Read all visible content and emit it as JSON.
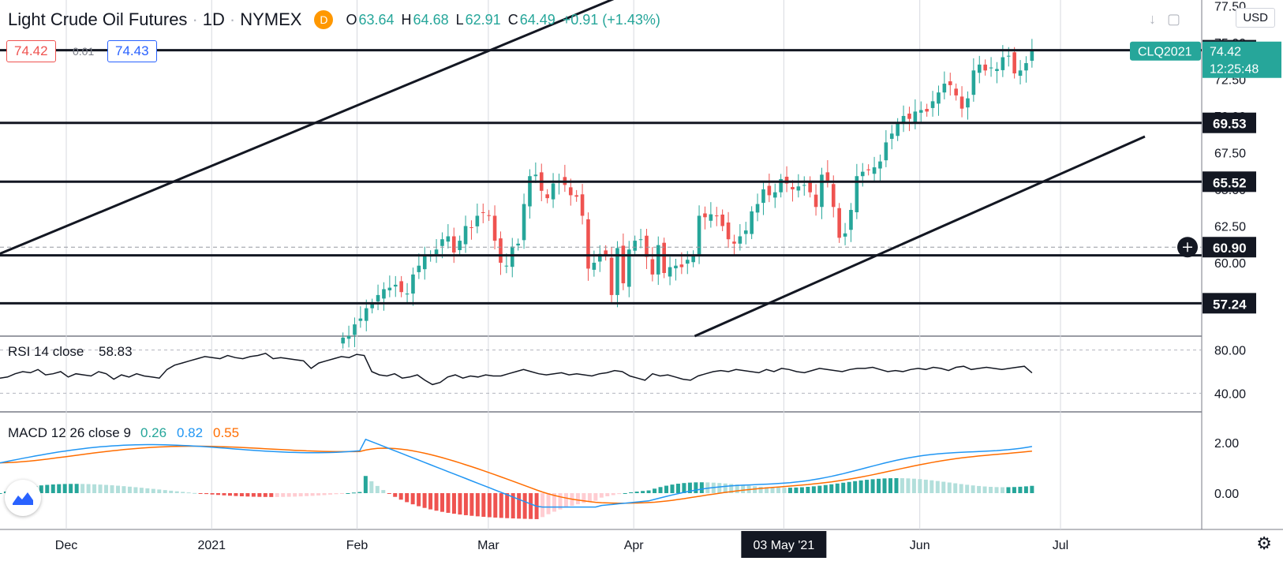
{
  "header": {
    "symbol_name": "Light Crude Oil Futures",
    "interval": "1D",
    "exchange": "NYMEX",
    "badge": "D",
    "ohlc": {
      "o_label": "O",
      "o": "63.64",
      "h_label": "H",
      "h": "64.68",
      "l_label": "L",
      "l": "62.91",
      "c_label": "C",
      "c": "64.49",
      "change": "+0.91 (+1.43%)"
    }
  },
  "trade": {
    "sell": "74.42",
    "spread": "0.01",
    "buy": "74.43"
  },
  "currency": "USD",
  "chart_data": {
    "type": "candlestick",
    "symbol": "CLQ2021",
    "colors": {
      "up": "#26a69a",
      "down": "#ef5350",
      "line": "#131722",
      "macd": "#2196f3",
      "signal": "#ff6d00",
      "hist_up": "#26a69a",
      "hist_up_weak": "#b2dfdb",
      "hist_down": "#ef5350",
      "hist_down_weak": "#ffcdd2"
    },
    "price_axis": {
      "ticks": [
        77.5,
        75.0,
        72.5,
        70.0,
        67.5,
        65.0,
        62.5,
        60.0
      ],
      "tick_labels": [
        "77.50",
        "75.00",
        "72.50",
        "70.00",
        "67.50",
        "65.00",
        "62.50",
        "60.00"
      ],
      "ylim": [
        55.0,
        77.9
      ]
    },
    "last_price": {
      "value": 74.42,
      "label": "74.42",
      "countdown": "12:25:48",
      "symbol_label": "CLQ2021"
    },
    "horizontal_levels": [
      {
        "value": 74.48,
        "label": "74.48"
      },
      {
        "value": 69.53,
        "label": "69.53"
      },
      {
        "value": 65.52,
        "label": "65.52"
      },
      {
        "value": 57.24,
        "label": "57.24"
      },
      {
        "value": 60.5,
        "label": ""
      }
    ],
    "crosshair": {
      "value": 60.9,
      "label": "60.90"
    },
    "time_axis": {
      "labels": [
        "Dec",
        "2021",
        "Feb",
        "Mar",
        "Apr",
        "03 May '21",
        "Jun",
        "Jul"
      ],
      "dates": [
        "2020-12-01",
        "2021-01-01",
        "2021-02-01",
        "2021-03-01",
        "2021-04-01",
        "2021-05-03",
        "2021-06-01",
        "2021-07-01"
      ],
      "highlight": "03 May '21"
    },
    "trendlines": [
      {
        "from": [
          "2020-11-16",
          60.5
        ],
        "to": [
          "2021-04-12",
          80.0
        ]
      },
      {
        "from": [
          "2021-04-14",
          55.0
        ],
        "to": [
          "2021-07-19",
          68.6
        ]
      }
    ],
    "candles_first_date": "2021-01-29",
    "candles_close": [
      54.9,
      55.0,
      55.8,
      56.2,
      56.9,
      57.2,
      57.8,
      58.2,
      58.3,
      58.5,
      58.0,
      57.9,
      59.2,
      59.8,
      60.5,
      60.5,
      60.9,
      61.6,
      61.8,
      60.7,
      61.5,
      62.5,
      62.4,
      63.2,
      63.4,
      63.2,
      61.5,
      60.0,
      59.8,
      61.1,
      61.3,
      64.0,
      65.9,
      66.0,
      64.9,
      64.4,
      65.4,
      65.6,
      65.3,
      64.6,
      64.5,
      63.2,
      59.6,
      60.0,
      60.6,
      60.5,
      57.8,
      61.0,
      58.6,
      60.9,
      61.5,
      61.6,
      60.4,
      59.2,
      61.2,
      59.3,
      59.7,
      59.8,
      59.7,
      60.2,
      60.5,
      63.2,
      63.1,
      63.3,
      63.2,
      62.5,
      61.6,
      61.3,
      61.8,
      62.2,
      63.5,
      64.0,
      65.0,
      64.6,
      64.8,
      65.7,
      65.4,
      65.0,
      65.2,
      65.3,
      64.8,
      63.8,
      66.0,
      65.6,
      63.8,
      61.7,
      62.0,
      63.6,
      65.9,
      66.2,
      66.3,
      66.5,
      66.9,
      68.2,
      68.8,
      69.5,
      70.0,
      69.8,
      70.3,
      70.4,
      70.3,
      71.0,
      71.6,
      72.2,
      72.1,
      71.4,
      70.5,
      71.2,
      73.1,
      73.5,
      73.1,
      73.3,
      73.2,
      74.0,
      74.1,
      72.9,
      73.1,
      73.6,
      74.42
    ],
    "rsi": {
      "label": "RSI 14 close",
      "value_label": "58.83",
      "ticks": [
        "80.00",
        "40.00"
      ],
      "tick_values": [
        80,
        40
      ],
      "values": [
        54,
        55,
        58,
        60,
        59,
        62,
        57,
        58,
        60,
        55,
        58,
        57,
        56,
        60,
        58,
        53,
        57,
        55,
        58,
        56,
        55,
        54,
        62,
        66,
        68,
        70,
        72,
        74,
        73,
        72,
        75,
        73,
        72,
        74,
        75,
        77,
        72,
        73,
        72,
        71,
        70,
        63,
        68,
        70,
        72,
        74,
        73,
        76,
        75,
        60,
        57,
        56,
        58,
        54,
        55,
        57,
        52,
        48,
        50,
        55,
        57,
        54,
        56,
        55,
        57,
        56,
        56,
        58,
        60,
        62,
        60,
        58,
        57,
        58,
        59,
        57,
        58,
        57,
        56,
        58,
        59,
        61,
        60,
        56,
        54,
        52,
        58,
        56,
        57,
        55,
        53,
        52,
        56,
        58,
        60,
        61,
        60,
        62,
        61,
        60,
        59,
        62,
        60,
        63,
        62,
        60,
        59,
        61,
        63,
        62,
        61,
        60,
        62,
        63,
        63,
        64,
        62,
        60,
        61,
        60,
        62,
        63,
        62,
        64,
        63,
        61,
        64,
        65,
        62,
        63,
        64,
        63,
        62,
        63,
        64,
        65,
        58.83
      ]
    },
    "macd": {
      "label": "MACD 12 26 close 9",
      "values_label": [
        "0.26",
        "0.82",
        "0.55"
      ],
      "ticks": [
        "2.00",
        "0.00"
      ],
      "tick_values": [
        2,
        0
      ]
    }
  }
}
